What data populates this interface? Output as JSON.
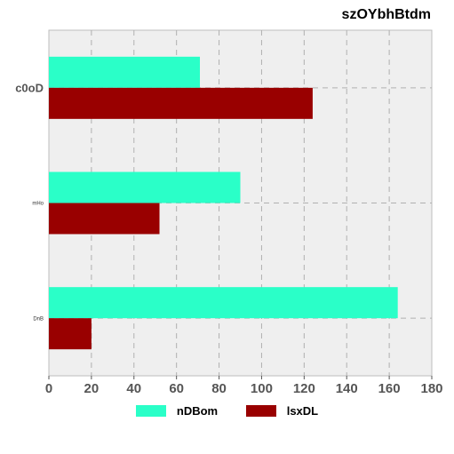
{
  "chart_data": {
    "type": "bar",
    "orientation": "horizontal",
    "title": "szOYbhBtdm",
    "xlabel": "",
    "ylabel": "",
    "categories": [
      "c0oD",
      "mHo",
      "DnB"
    ],
    "series": [
      {
        "name": "nDBom",
        "values": [
          71,
          90,
          164
        ],
        "color": "#2affc8"
      },
      {
        "name": "lsxDL",
        "values": [
          124,
          52,
          20
        ],
        "color": "#990000"
      }
    ],
    "xlim": [
      0,
      180
    ],
    "xticks": [
      0,
      20,
      40,
      60,
      80,
      100,
      120,
      140,
      160,
      180
    ],
    "grid": true,
    "legend_position": "bottom"
  }
}
